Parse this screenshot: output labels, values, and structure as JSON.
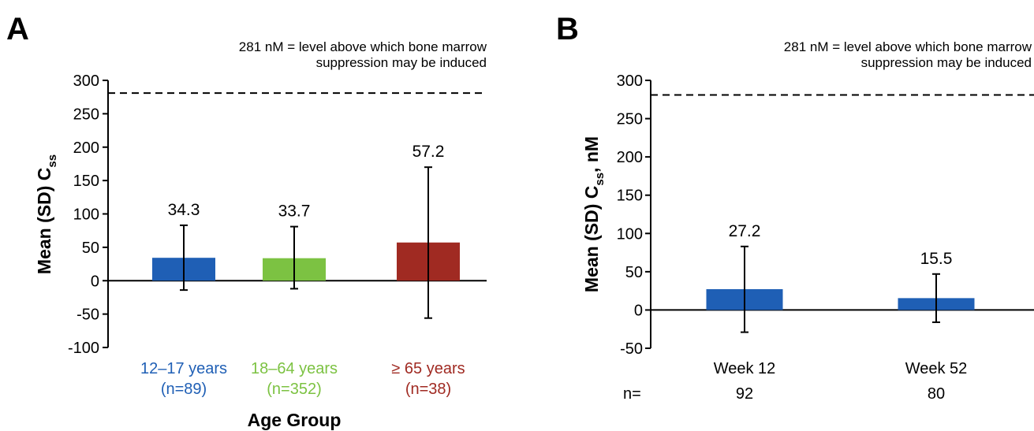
{
  "chart_data": [
    {
      "type": "bar",
      "panel": "A",
      "annotation": [
        "281 nM = level above which bone marrow",
        "suppression may be induced"
      ],
      "reference_line": 281,
      "ylabel_main": "Mean (SD) C",
      "ylabel_sub": "ss",
      "ylabel_suffix": "",
      "xlabel": "Age Group",
      "ylim": [
        -100,
        300
      ],
      "yticks": [
        300,
        250,
        200,
        150,
        100,
        50,
        0,
        -50,
        -100
      ],
      "ytick_labels": [
        "300",
        "250",
        "200",
        "150",
        "100",
        "50",
        "0",
        "-50",
        "-100"
      ],
      "categories": [
        "12–17 years",
        "18–64 years",
        "≥ 65 years"
      ],
      "category_sublabels": [
        "(n=89)",
        "(n=352)",
        "(n=38)"
      ],
      "values": [
        34.3,
        33.7,
        57.2
      ],
      "value_labels": [
        "34.3",
        "33.7",
        "57.2"
      ],
      "error_low": [
        -14,
        -12,
        -56
      ],
      "error_high": [
        83,
        81,
        170
      ],
      "colors": [
        "#1f5fb5",
        "#7cc242",
        "#a02a22"
      ],
      "label_colors": [
        "#1f5fb5",
        "#7cc242",
        "#a02a22"
      ]
    },
    {
      "type": "bar",
      "panel": "B",
      "annotation": [
        "281 nM = level above which bone marrow",
        "suppression may be induced"
      ],
      "reference_line": 281,
      "ylabel_main": "Mean (SD) C",
      "ylabel_sub": "ss",
      "ylabel_suffix": ", nM",
      "xlabel": "",
      "ylim": [
        -50,
        300
      ],
      "yticks": [
        300,
        250,
        200,
        150,
        100,
        50,
        0,
        -50
      ],
      "ytick_labels": [
        "300",
        "250",
        "200",
        "150",
        "100",
        "50",
        "0",
        "-50"
      ],
      "categories": [
        "Week 12",
        "Week 52"
      ],
      "n_prefix": "n=",
      "n_values": [
        "92",
        "80"
      ],
      "values": [
        27.2,
        15.5
      ],
      "value_labels": [
        "27.2",
        "15.5"
      ],
      "error_low": [
        -29,
        -16
      ],
      "error_high": [
        83,
        47
      ],
      "colors": [
        "#1f5fb5",
        "#1f5fb5"
      ],
      "label_colors": [
        "#000000",
        "#000000"
      ]
    }
  ]
}
